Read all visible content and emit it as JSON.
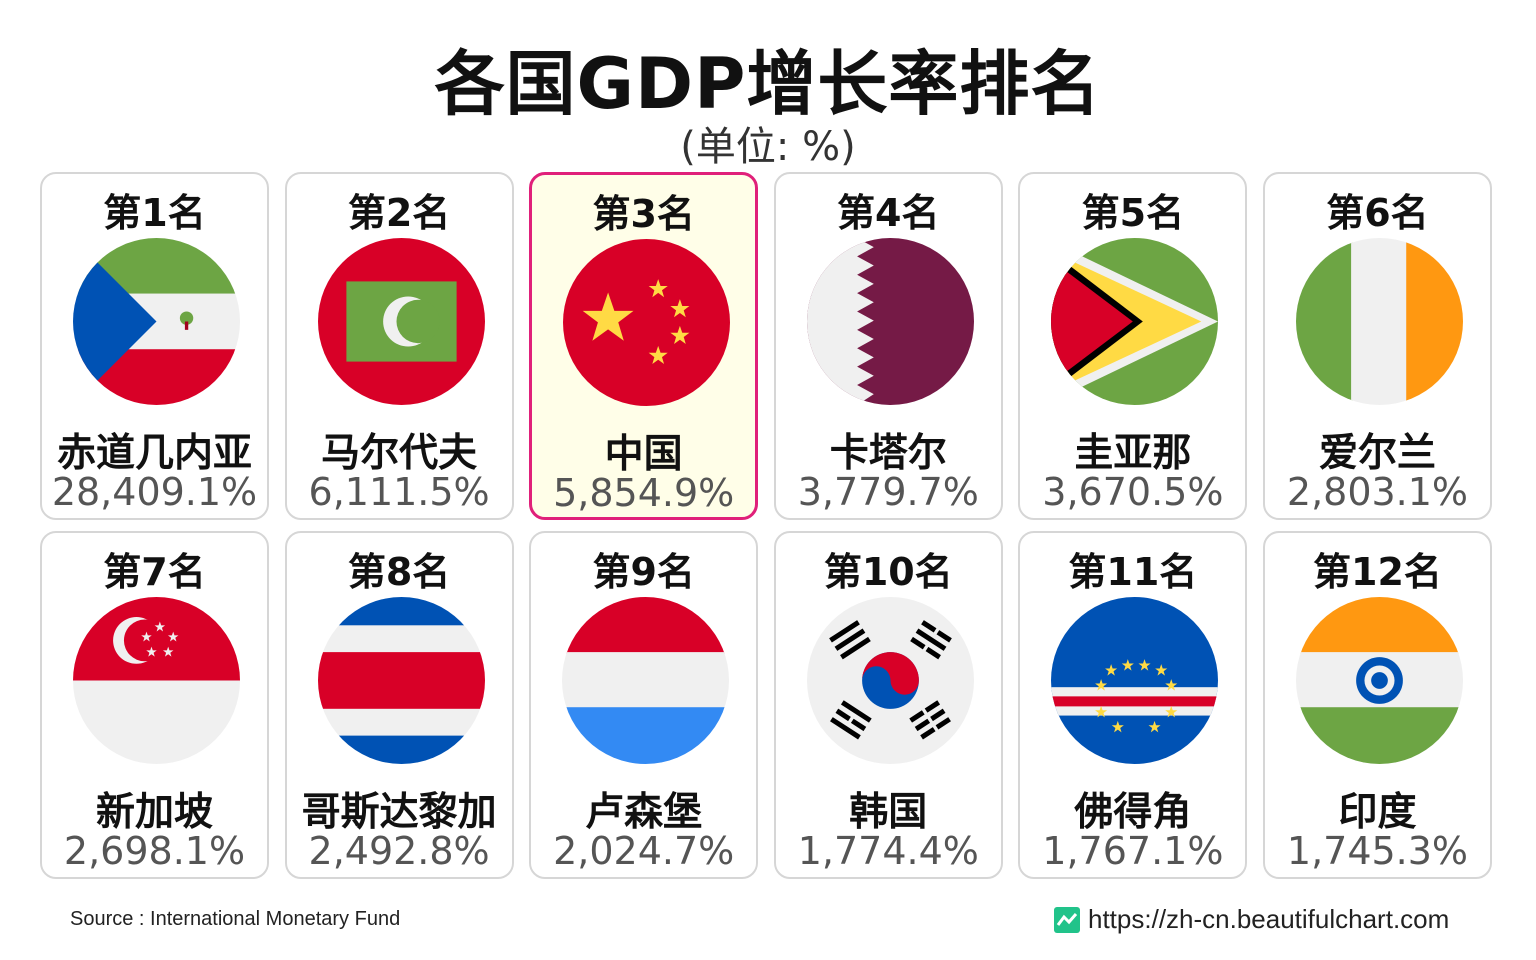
{
  "title": "各国GDP增长率排名",
  "subtitle": "(单位: %)",
  "source": "Source : International Monetary Fund",
  "url": "https://zh-cn.beautifulchart.com",
  "highlight_color": "#e0207a",
  "highlight_background": "#fffee8",
  "chart_data": {
    "type": "table",
    "unit": "%",
    "items": [
      {
        "rank_label": "第1名",
        "country": "赤道几内亚",
        "value": 28409.1,
        "value_label": "28,409.1%",
        "flag": "equatorial-guinea-flag",
        "highlight": false
      },
      {
        "rank_label": "第2名",
        "country": "马尔代夫",
        "value": 6111.5,
        "value_label": "6,111.5%",
        "flag": "maldives-flag",
        "highlight": false
      },
      {
        "rank_label": "第3名",
        "country": "中国",
        "value": 5854.9,
        "value_label": "5,854.9%",
        "flag": "china-flag",
        "highlight": true
      },
      {
        "rank_label": "第4名",
        "country": "卡塔尔",
        "value": 3779.7,
        "value_label": "3,779.7%",
        "flag": "qatar-flag",
        "highlight": false
      },
      {
        "rank_label": "第5名",
        "country": "圭亚那",
        "value": 3670.5,
        "value_label": "3,670.5%",
        "flag": "guyana-flag",
        "highlight": false
      },
      {
        "rank_label": "第6名",
        "country": "爱尔兰",
        "value": 2803.1,
        "value_label": "2,803.1%",
        "flag": "ireland-flag",
        "highlight": false
      },
      {
        "rank_label": "第7名",
        "country": "新加坡",
        "value": 2698.1,
        "value_label": "2,698.1%",
        "flag": "singapore-flag",
        "highlight": false
      },
      {
        "rank_label": "第8名",
        "country": "哥斯达黎加",
        "value": 2492.8,
        "value_label": "2,492.8%",
        "flag": "costa-rica-flag",
        "highlight": false
      },
      {
        "rank_label": "第9名",
        "country": "卢森堡",
        "value": 2024.7,
        "value_label": "2,024.7%",
        "flag": "luxembourg-flag",
        "highlight": false
      },
      {
        "rank_label": "第10名",
        "country": "韩国",
        "value": 1774.4,
        "value_label": "1,774.4%",
        "flag": "south-korea-flag",
        "highlight": false
      },
      {
        "rank_label": "第11名",
        "country": "佛得角",
        "value": 1767.1,
        "value_label": "1,767.1%",
        "flag": "cape-verde-flag",
        "highlight": false
      },
      {
        "rank_label": "第12名",
        "country": "印度",
        "value": 1745.3,
        "value_label": "1,745.3%",
        "flag": "india-flag",
        "highlight": false
      }
    ]
  }
}
